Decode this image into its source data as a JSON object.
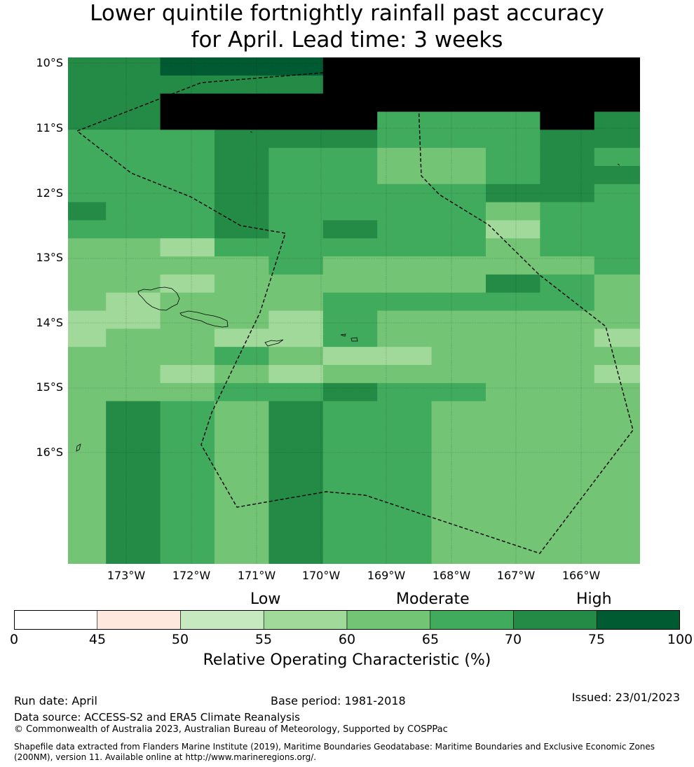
{
  "title": {
    "line1": "Lower quintile fortnightly rainfall past accuracy",
    "line2": "for April. Lead time: 3 weeks"
  },
  "map": {
    "lat_labels": [
      "10°S",
      "11°S",
      "12°S",
      "13°S",
      "14°S",
      "15°S",
      "16°S"
    ],
    "lon_labels": [
      "173°W",
      "172°W",
      "171°W",
      "170°W",
      "169°W",
      "168°W",
      "167°W",
      "166°W"
    ],
    "grid_legend_classes": [
      [
        6,
        6,
        7,
        7,
        7,
        8,
        8,
        8,
        8,
        8,
        8
      ],
      [
        6,
        6,
        6,
        6,
        6,
        8,
        8,
        8,
        8,
        8,
        8
      ],
      [
        6,
        6,
        8,
        8,
        8,
        8,
        8,
        8,
        8,
        8,
        8
      ],
      [
        6,
        6,
        8,
        8,
        8,
        8,
        5,
        5,
        5,
        8,
        6
      ],
      [
        5,
        5,
        5,
        6,
        6,
        6,
        5,
        5,
        5,
        6,
        6
      ],
      [
        5,
        5,
        5,
        6,
        5,
        5,
        4,
        4,
        5,
        6,
        5
      ],
      [
        5,
        5,
        5,
        6,
        5,
        5,
        4,
        4,
        5,
        6,
        6
      ],
      [
        5,
        5,
        5,
        6,
        5,
        5,
        5,
        5,
        6,
        6,
        5
      ],
      [
        6,
        5,
        5,
        6,
        5,
        5,
        5,
        5,
        4,
        5,
        5
      ],
      [
        5,
        5,
        5,
        6,
        5,
        6,
        5,
        5,
        3,
        5,
        5
      ],
      [
        4,
        4,
        3,
        5,
        5,
        5,
        5,
        5,
        4,
        5,
        5
      ],
      [
        4,
        4,
        4,
        4,
        5,
        4,
        4,
        4,
        4,
        4,
        5
      ],
      [
        4,
        4,
        3,
        4,
        4,
        4,
        4,
        4,
        6,
        5,
        4
      ],
      [
        4,
        3,
        4,
        4,
        4,
        5,
        5,
        5,
        5,
        5,
        4
      ],
      [
        3,
        3,
        4,
        4,
        3,
        5,
        4,
        4,
        4,
        4,
        4
      ],
      [
        3,
        4,
        4,
        3,
        3,
        5,
        4,
        4,
        4,
        4,
        3
      ],
      [
        4,
        4,
        4,
        5,
        4,
        3,
        3,
        4,
        4,
        4,
        4
      ],
      [
        4,
        4,
        3,
        4,
        3,
        4,
        4,
        4,
        4,
        4,
        3
      ],
      [
        4,
        4,
        4,
        5,
        5,
        6,
        5,
        5,
        4,
        4,
        4
      ],
      [
        4,
        6,
        5,
        4,
        6,
        5,
        5,
        4,
        4,
        4,
        4
      ]
    ]
  },
  "colorbar": {
    "colors": [
      "#ffffff",
      "#fee8de",
      "#c7e9c0",
      "#a1d99b",
      "#74c476",
      "#41ab5d",
      "#238b45",
      "#005a32"
    ],
    "ticks": [
      "0",
      "45",
      "50",
      "55",
      "60",
      "65",
      "70",
      "75",
      "100"
    ],
    "category_low": "Low",
    "category_moderate": "Moderate",
    "category_high": "High",
    "title": "Relative Operating Characteristic (%)"
  },
  "footer": {
    "run_date": "Run date: April",
    "base_period": "Base period: 1981-2018",
    "issued": "Issued: 23/01/2023",
    "data_source": "Data source: ACCESS-S2 and ERA5 Climate Reanalysis",
    "copyright": "© Commonwealth of Australia 2023, Australian Bureau of Meteorology, Supported by COSPPac",
    "shapefile_line1": "Shapefile data extracted from Flanders Marine Institute (2019), Maritime Boundaries Geodatabase: Maritime Boundaries and Exclusive Economic Zones",
    "shapefile_line2": "(200NM), version 11. Available online at http://www.marineregions.org/."
  }
}
